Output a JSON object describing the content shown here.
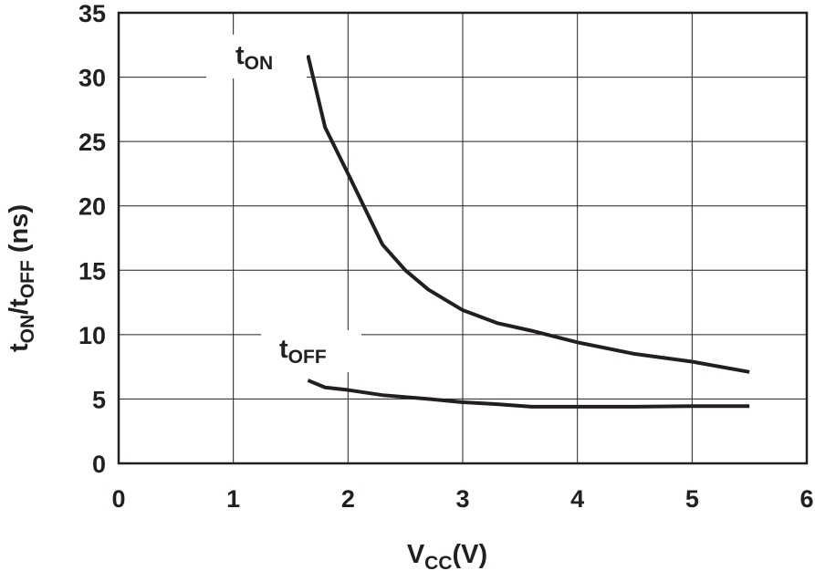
{
  "chart_data": {
    "type": "line",
    "xlabel": [
      "V",
      "CC",
      "(V)"
    ],
    "ylabel": [
      "t",
      "ON",
      "/t",
      "OFF",
      " (ns)"
    ],
    "xlim": [
      0,
      6
    ],
    "xticks": [
      0,
      1,
      2,
      3,
      4,
      5,
      6
    ],
    "ylim": [
      0,
      35
    ],
    "yticks": [
      0,
      5,
      10,
      15,
      20,
      25,
      30,
      35
    ],
    "grid": true,
    "color": "#231f20",
    "series": [
      {
        "name": [
          "t",
          "ON"
        ],
        "color": "#231f20",
        "x": [
          1.65,
          1.8,
          2.0,
          2.3,
          2.5,
          2.7,
          3.0,
          3.3,
          3.6,
          4.0,
          4.5,
          5.0,
          5.5
        ],
        "values": [
          31.7,
          26.1,
          22.5,
          17.0,
          15.0,
          13.5,
          11.9,
          10.9,
          10.3,
          9.4,
          8.5,
          7.9,
          7.1
        ]
      },
      {
        "name": [
          "t",
          "OFF"
        ],
        "color": "#231f20",
        "x": [
          1.65,
          1.8,
          2.0,
          2.3,
          2.7,
          3.0,
          3.3,
          3.6,
          4.5,
          5.0,
          5.5
        ],
        "values": [
          6.45,
          5.9,
          5.7,
          5.3,
          5.0,
          4.75,
          4.6,
          4.4,
          4.4,
          4.45,
          4.45
        ]
      }
    ]
  }
}
